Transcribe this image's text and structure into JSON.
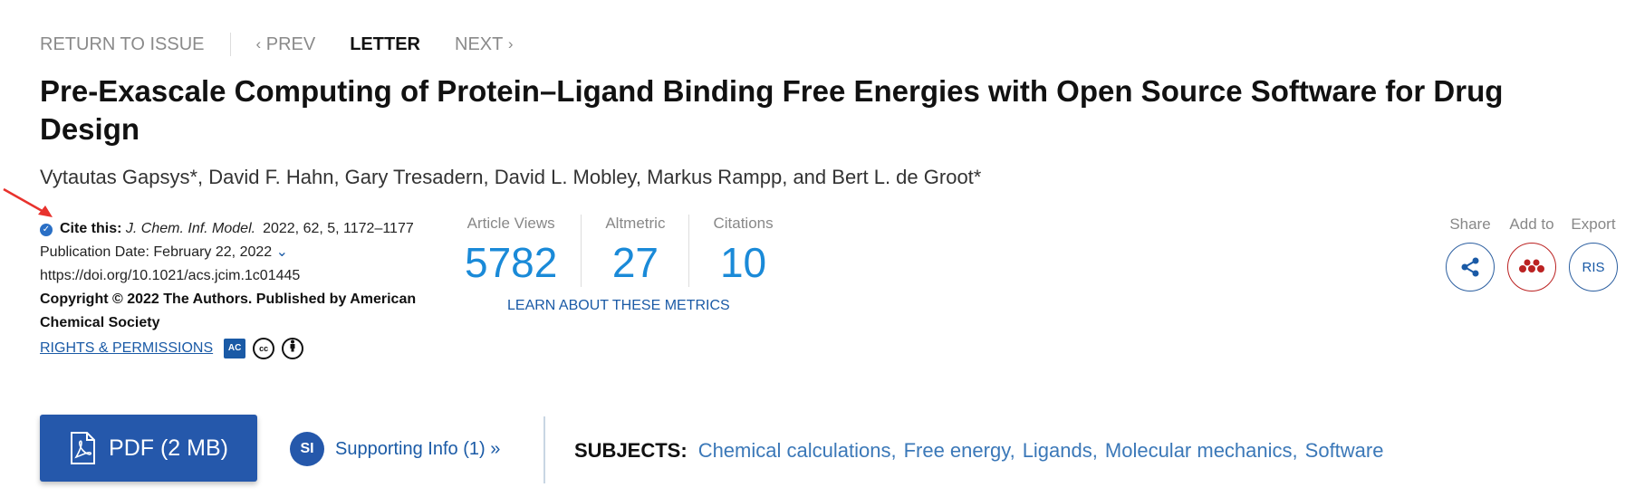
{
  "nav": {
    "return_label": "RETURN TO ISSUE",
    "prev_label": "PREV",
    "current_label": "LETTER",
    "next_label": "NEXT"
  },
  "article": {
    "title": "Pre-Exascale Computing of Protein–Ligand Binding Free Energies with Open Source Software for Drug Design",
    "authors": "Vytautas Gapsys*, David F. Hahn, Gary Tresadern, David L. Mobley, Markus Rampp, and Bert L. de Groot*"
  },
  "cite": {
    "label": "Cite this:",
    "journal": "J. Chem. Inf. Model.",
    "ref": "2022, 62, 5, 1172–1177",
    "pub_date": "Publication Date: February 22, 2022",
    "doi": "https://doi.org/10.1021/acs.jcim.1c01445",
    "copyright": "Copyright © 2022 The Authors. Published by American Chemical Society",
    "rights_label": "RIGHTS & PERMISSIONS",
    "license_ac": "AC",
    "license_cc": "cc"
  },
  "metrics": {
    "items": [
      {
        "label": "Article Views",
        "value": "5782"
      },
      {
        "label": "Altmetric",
        "value": "27"
      },
      {
        "label": "Citations",
        "value": "10"
      }
    ],
    "learn_label": "LEARN ABOUT THESE METRICS"
  },
  "actions": {
    "share_label": "Share",
    "add_label": "Add to",
    "export_label": "Export",
    "export_icon_text": "RIS"
  },
  "buttons": {
    "pdf_label": "PDF (2 MB)",
    "si_badge": "SI",
    "si_label": "Supporting Info (1) »"
  },
  "subjects": {
    "label": "SUBJECTS:",
    "items": [
      "Chemical calculations",
      "Free energy",
      "Ligands",
      "Molecular mechanics",
      "Software"
    ]
  },
  "colors": {
    "accent_blue": "#2558ab",
    "metric_blue": "#1a8ad8",
    "link_blue": "#1a5aa6",
    "mendeley_red": "#b22222",
    "annotation_red": "#e8322d"
  }
}
